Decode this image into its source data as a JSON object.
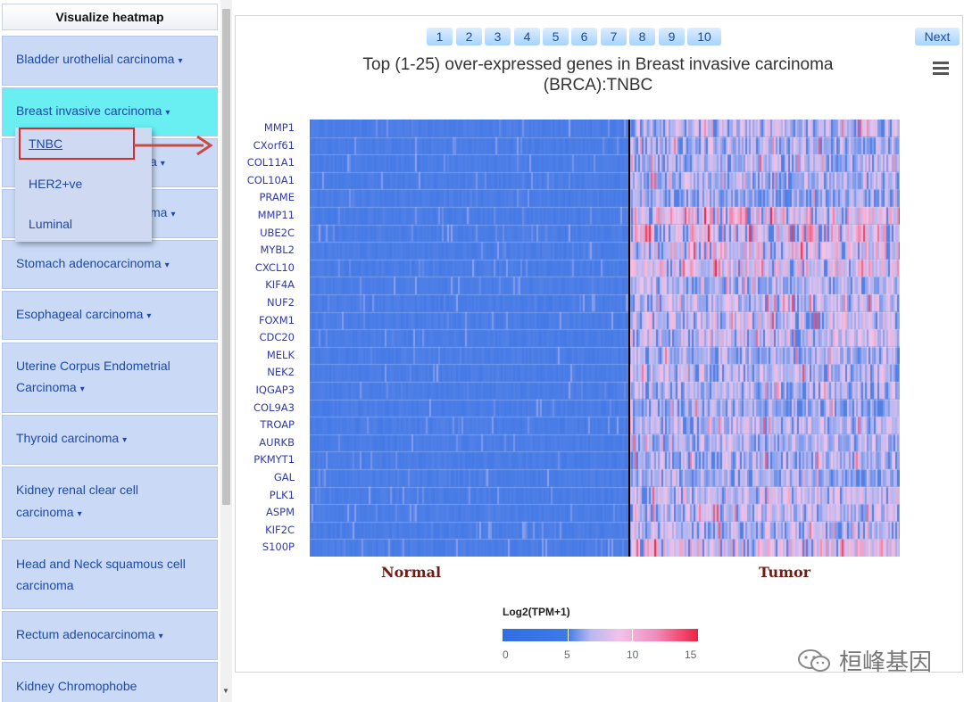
{
  "sidebar": {
    "header": "Visualize heatmap",
    "items": [
      {
        "label": "Bladder urothelial carcinoma",
        "line2": "",
        "caret": "▾"
      },
      {
        "label": "Breast invasive carcinoma",
        "line2": "",
        "caret": "▾"
      },
      {
        "label": "a",
        "line2": "",
        "caret": "▾"
      },
      {
        "label": "ma",
        "line2": "",
        "caret": "▾"
      },
      {
        "label": "Stomach adenocarcinoma",
        "line2": "",
        "caret": "▾"
      },
      {
        "label": "Esophageal carcinoma",
        "line2": "",
        "caret": "▾"
      },
      {
        "label": "Uterine Corpus Endometrial",
        "line2": "Carcinoma",
        "caret": "▾"
      },
      {
        "label": "Thyroid carcinoma",
        "line2": "",
        "caret": "▾"
      },
      {
        "label": "Kidney renal clear cell",
        "line2": "carcinoma",
        "caret": "▾"
      },
      {
        "label": "Head and Neck squamous cell",
        "line2": "carcinoma",
        "caret": ""
      },
      {
        "label": "Rectum adenocarcinoma",
        "line2": "",
        "caret": "▾"
      },
      {
        "label": "Kidney Chromophobe",
        "line2": "",
        "caret": ""
      }
    ],
    "dropdown": [
      "TNBC",
      "HER2+ve",
      "Luminal"
    ]
  },
  "pagination": {
    "pages": [
      "1",
      "2",
      "3",
      "4",
      "5",
      "6",
      "7",
      "8",
      "9",
      "10"
    ],
    "next_label": "Next"
  },
  "watermark": "桓峰基因",
  "chart_data": {
    "type": "heatmap",
    "title_line1": "Top (1-25) over-expressed genes in Breast invasive carcinoma",
    "title_line2": "(BRCA):TNBC",
    "genes": [
      "MMP1",
      "CXorf61",
      "COL11A1",
      "COL10A1",
      "PRAME",
      "MMP11",
      "UBE2C",
      "MYBL2",
      "CXCL10",
      "KIF4A",
      "NUF2",
      "FOXM1",
      "CDC20",
      "MELK",
      "NEK2",
      "IQGAP3",
      "COL9A3",
      "TROAP",
      "AURKB",
      "PKMYT1",
      "GAL",
      "PLK1",
      "ASPM",
      "KIF2C",
      "S100P"
    ],
    "groups": [
      "Normal",
      "Tumor"
    ],
    "legend_title": "Log2(TPM+1)",
    "legend_ticks": [
      "0",
      "5",
      "10",
      "15"
    ],
    "value_range": [
      0,
      15
    ],
    "colorscale": [
      "#2f6ee4",
      "#b8b8f0",
      "#f2c2e8",
      "#f02040"
    ],
    "group_fraction_normal": 0.5,
    "normal_mean": 1.0,
    "tumor_mean_by_gene": [
      6.5,
      6.0,
      6.2,
      6.0,
      5.0,
      8.5,
      8.5,
      8.0,
      8.0,
      6.0,
      6.5,
      7.0,
      7.0,
      6.0,
      6.5,
      6.0,
      5.5,
      6.5,
      6.0,
      6.0,
      5.5,
      7.0,
      6.5,
      6.5,
      8.0
    ]
  }
}
